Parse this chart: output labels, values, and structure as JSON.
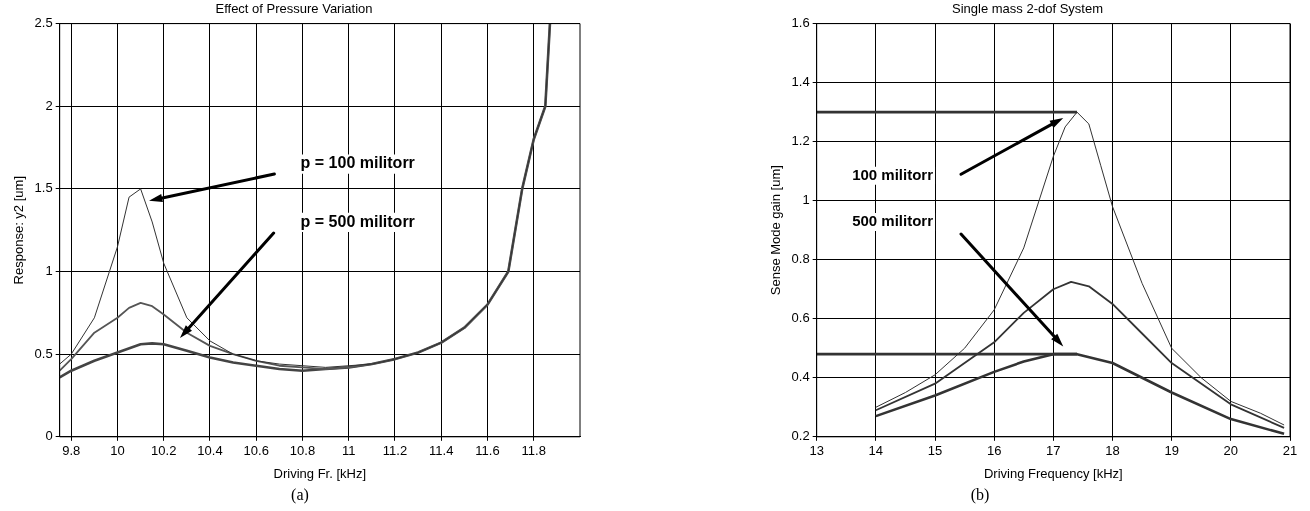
{
  "chart_data": [
    {
      "type": "line",
      "title": "Effect of Pressure Variation",
      "xlabel": "Driving Fr. [kHz]",
      "ylabel": "Response: y2 [um]",
      "xlim": [
        9.75,
        12.0
      ],
      "xticks": [
        9.8,
        10,
        10.2,
        10.4,
        10.6,
        10.8,
        11,
        11.2,
        11.4,
        11.6,
        11.8
      ],
      "ylim": [
        0,
        2.5
      ],
      "yticks": [
        0,
        0.5,
        1,
        1.5,
        2,
        2.5
      ],
      "grid": true,
      "legend": false,
      "marker": "none",
      "line_style": "solid",
      "series": [
        {
          "color": "#333333",
          "x": [
            9.75,
            9.8,
            9.9,
            10.0,
            10.05,
            10.1,
            10.15,
            10.2,
            10.3,
            10.4,
            10.5,
            10.6,
            10.7,
            10.8,
            10.9,
            11.0,
            11.1,
            11.2,
            11.3,
            11.4,
            11.5,
            11.6,
            11.69,
            11.75,
            11.8,
            11.85,
            11.87
          ],
          "values": [
            0.44,
            0.5,
            0.72,
            1.15,
            1.45,
            1.5,
            1.3,
            1.05,
            0.72,
            0.58,
            0.5,
            0.46,
            0.44,
            0.43,
            0.42,
            0.43,
            0.44,
            0.47,
            0.51,
            0.57,
            0.66,
            0.8,
            1.0,
            1.5,
            1.8,
            2.0,
            2.5
          ]
        },
        {
          "color": "#555555",
          "x": [
            9.75,
            9.8,
            9.9,
            10.0,
            10.05,
            10.1,
            10.15,
            10.2,
            10.3,
            10.4,
            10.5,
            10.6,
            10.7,
            10.8,
            10.9,
            11.0,
            11.1,
            11.2,
            11.3,
            11.4,
            11.5,
            11.6,
            11.69,
            11.75,
            11.8,
            11.85,
            11.87
          ],
          "values": [
            0.4,
            0.47,
            0.63,
            0.72,
            0.78,
            0.81,
            0.79,
            0.74,
            0.63,
            0.55,
            0.5,
            0.46,
            0.43,
            0.42,
            0.41,
            0.42,
            0.44,
            0.47,
            0.51,
            0.57,
            0.66,
            0.8,
            1.0,
            1.5,
            1.8,
            2.0,
            2.5
          ]
        },
        {
          "color": "#444444",
          "x": [
            9.75,
            9.8,
            9.9,
            10.0,
            10.1,
            10.15,
            10.2,
            10.3,
            10.4,
            10.5,
            10.6,
            10.7,
            10.8,
            10.9,
            11.0,
            11.1,
            11.2,
            11.3,
            11.4,
            11.5,
            11.6,
            11.69,
            11.75,
            11.8,
            11.85,
            11.87
          ],
          "values": [
            0.36,
            0.4,
            0.46,
            0.51,
            0.56,
            0.565,
            0.56,
            0.52,
            0.48,
            0.45,
            0.43,
            0.41,
            0.4,
            0.41,
            0.42,
            0.44,
            0.47,
            0.51,
            0.57,
            0.66,
            0.8,
            1.0,
            1.5,
            1.8,
            2.0,
            2.5
          ]
        }
      ],
      "annotations": [
        "p = 100 militorr",
        "p = 500 militorr",
        "(a)"
      ]
    },
    {
      "type": "line",
      "title": "Single mass 2-dof System",
      "xlabel": "Driving Frequency [kHz]",
      "ylabel": "Sense Mode gain [um]",
      "xlim": [
        13,
        21
      ],
      "xticks": [
        13,
        14,
        15,
        16,
        17,
        18,
        19,
        20,
        21
      ],
      "ylim": [
        0.2,
        1.6
      ],
      "yticks": [
        0.2,
        0.4,
        0.6,
        0.8,
        1,
        1.2,
        1.4,
        1.6
      ],
      "grid": true,
      "legend": false,
      "marker": "none",
      "line_style": "solid",
      "series": [
        {
          "color": "#333333",
          "x": [
            14,
            14.5,
            15,
            15.5,
            16,
            16.5,
            17,
            17.2,
            17.4,
            17.6,
            17.8,
            18,
            18.5,
            19,
            19.5,
            20,
            20.5,
            20.9
          ],
          "values": [
            0.3,
            0.35,
            0.41,
            0.5,
            0.63,
            0.84,
            1.15,
            1.25,
            1.3,
            1.26,
            1.12,
            0.98,
            0.72,
            0.5,
            0.4,
            0.32,
            0.28,
            0.24
          ]
        },
        {
          "color": "#333333",
          "x": [
            14,
            15,
            16,
            16.5,
            17,
            17.3,
            17.6,
            18,
            18.5,
            19,
            20,
            20.9
          ],
          "values": [
            0.29,
            0.38,
            0.52,
            0.62,
            0.7,
            0.725,
            0.71,
            0.65,
            0.55,
            0.45,
            0.31,
            0.23
          ]
        },
        {
          "color": "#333333",
          "x": [
            14,
            15,
            16,
            16.5,
            17,
            17.4,
            18,
            18.5,
            19,
            20,
            20.9
          ],
          "values": [
            0.27,
            0.34,
            0.42,
            0.455,
            0.48,
            0.48,
            0.45,
            0.4,
            0.35,
            0.26,
            0.21
          ]
        },
        {
          "color": "#333333",
          "x": [
            13,
            17.4
          ],
          "values": [
            1.3,
            1.3
          ]
        },
        {
          "color": "#333333",
          "x": [
            13,
            17.4
          ],
          "values": [
            0.48,
            0.48
          ]
        }
      ],
      "annotations": [
        "100 militorr",
        "500 militorr",
        "(b)"
      ]
    }
  ]
}
